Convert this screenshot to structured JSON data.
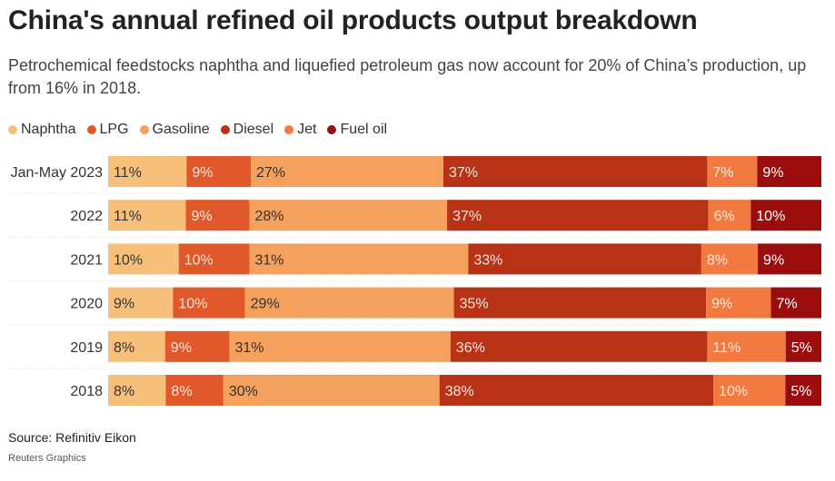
{
  "header": {
    "title": "China's annual refined oil products output breakdown",
    "subtitle": "Petrochemical feedstocks naphtha and liquefied petroleum gas now account for 20% of China’s production, up from 16% in 2018."
  },
  "footer": {
    "source": "Source: Refinitiv Eikon",
    "credit": "Reuters Graphics"
  },
  "chart_data": {
    "type": "bar",
    "orientation": "horizontal",
    "stacked": true,
    "normalized": true,
    "legend_position": "top-left",
    "grid": false,
    "categories": [
      "Jan-May 2023",
      "2022",
      "2021",
      "2020",
      "2019",
      "2018"
    ],
    "series": [
      {
        "name": "Naphtha",
        "color": "#f7c07a",
        "label_color": "#333333",
        "values": [
          11,
          11,
          10,
          9,
          8,
          8
        ]
      },
      {
        "name": "LPG",
        "color": "#e1582a",
        "label_color": "#f5e6dc",
        "values": [
          9,
          9,
          10,
          10,
          9,
          8
        ]
      },
      {
        "name": "Gasoline",
        "color": "#f5a05c",
        "label_color": "#333333",
        "values": [
          27,
          28,
          31,
          29,
          31,
          30
        ]
      },
      {
        "name": "Diesel",
        "color": "#b83215",
        "label_color": "#f5e6dc",
        "values": [
          37,
          37,
          33,
          35,
          36,
          38
        ]
      },
      {
        "name": "Jet",
        "color": "#f27a40",
        "label_color": "#fbe9dd",
        "values": [
          7,
          6,
          8,
          9,
          11,
          10
        ]
      },
      {
        "name": "Fuel oil",
        "color": "#9b0d0d",
        "label_color": "#ffffff",
        "values": [
          9,
          10,
          9,
          7,
          5,
          5
        ]
      }
    ],
    "value_suffix": "%"
  }
}
